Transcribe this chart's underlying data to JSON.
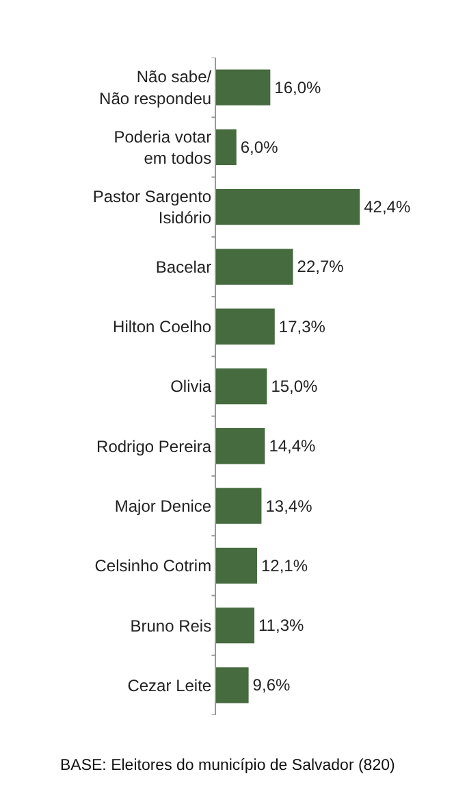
{
  "chart_data": {
    "type": "bar",
    "orientation": "horizontal",
    "categories": [
      "Não sabe/\nNão respondeu",
      "Poderia votar\nem todos",
      "Pastor Sargento\nIsidório",
      "Bacelar",
      "Hilton Coelho",
      "Olivia",
      "Rodrigo Pereira",
      "Major Denice",
      "Celsinho Cotrim",
      "Bruno Reis",
      "Cezar Leite"
    ],
    "values": [
      16.0,
      6.0,
      42.4,
      22.7,
      17.3,
      15.0,
      14.4,
      13.4,
      12.1,
      11.3,
      9.6
    ],
    "value_labels": [
      "16,0%",
      "6,0%",
      "42,4%",
      "22,7%",
      "17,3%",
      "15,0%",
      "14,4%",
      "13,4%",
      "12,1%",
      "11,3%",
      "9,6%"
    ],
    "color": "#466b3f",
    "legend": false,
    "tick_labels": "y",
    "annotations": [
      "BASE: Eleitores do município de Salvador (820)"
    ]
  }
}
